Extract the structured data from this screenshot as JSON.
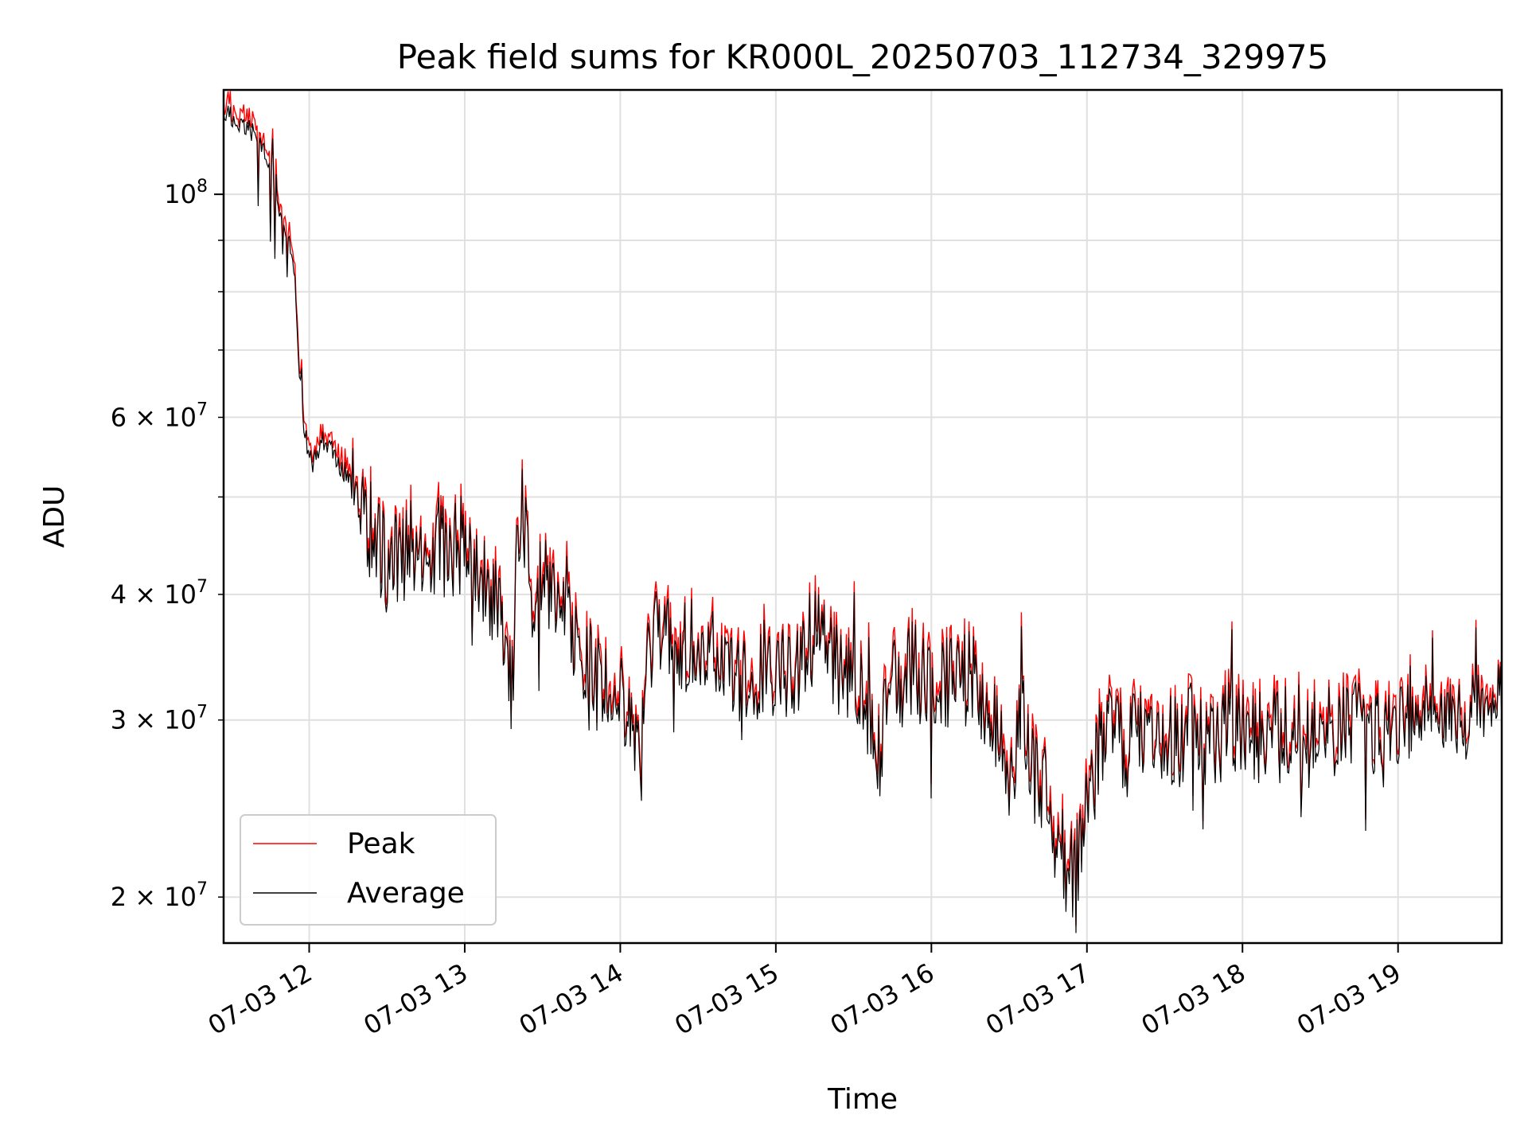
{
  "chart_data": {
    "type": "line",
    "title": "Peak field sums for KR000L_20250703_112734_329975",
    "xlabel": "Time",
    "ylabel": "ADU",
    "yscale": "log",
    "ylim": [
      18000000,
      127000000
    ],
    "xlim": [
      "2025-07-03 11:27",
      "2025-07-03 19:40"
    ],
    "grid": true,
    "legend_position": "lower-left",
    "x_ticks": [
      {
        "label": "07-03 12",
        "time": "2025-07-03 12:00"
      },
      {
        "label": "07-03 13",
        "time": "2025-07-03 13:00"
      },
      {
        "label": "07-03 14",
        "time": "2025-07-03 14:00"
      },
      {
        "label": "07-03 15",
        "time": "2025-07-03 15:00"
      },
      {
        "label": "07-03 16",
        "time": "2025-07-03 16:00"
      },
      {
        "label": "07-03 17",
        "time": "2025-07-03 17:00"
      },
      {
        "label": "07-03 18",
        "time": "2025-07-03 18:00"
      },
      {
        "label": "07-03 19",
        "time": "2025-07-03 19:00"
      }
    ],
    "y_ticks_major": [
      {
        "base": "10",
        "exp": "8",
        "value": 100000000
      }
    ],
    "y_ticks_minor": [
      {
        "mant": "2",
        "exp": "7",
        "value": 20000000
      },
      {
        "mant": "3",
        "exp": "7",
        "value": 30000000
      },
      {
        "mant": "4",
        "exp": "7",
        "value": 40000000
      },
      {
        "mant": "6",
        "exp": "7",
        "value": 60000000
      }
    ],
    "y_ticks_unlabeled": [
      50000000,
      70000000,
      80000000,
      90000000
    ],
    "series": [
      {
        "name": "Peak",
        "color": "#ff0000",
        "points": [
          [
            "2025-07-03 11:27",
            122000000
          ],
          [
            "2025-07-03 11:32",
            118000000
          ],
          [
            "2025-07-03 11:37",
            116000000
          ],
          [
            "2025-07-03 11:42",
            113000000
          ],
          [
            "2025-07-03 11:47",
            103000000
          ],
          [
            "2025-07-03 11:50",
            92000000
          ],
          [
            "2025-07-03 11:54",
            86000000
          ],
          [
            "2025-07-03 11:57",
            62000000
          ],
          [
            "2025-07-03 12:00",
            54000000
          ],
          [
            "2025-07-03 12:05",
            57000000
          ],
          [
            "2025-07-03 12:10",
            55000000
          ],
          [
            "2025-07-03 12:15",
            52000000
          ],
          [
            "2025-07-03 12:20",
            48000000
          ],
          [
            "2025-07-03 12:25",
            46000000
          ],
          [
            "2025-07-03 12:30",
            43000000
          ],
          [
            "2025-07-03 12:35",
            44000000
          ],
          [
            "2025-07-03 12:40",
            43500000
          ],
          [
            "2025-07-03 12:45",
            44000000
          ],
          [
            "2025-07-03 12:50",
            45000000
          ],
          [
            "2025-07-03 12:55",
            44000000
          ],
          [
            "2025-07-03 13:00",
            45000000
          ],
          [
            "2025-07-03 13:05",
            41000000
          ],
          [
            "2025-07-03 13:10",
            40000000
          ],
          [
            "2025-07-03 13:15",
            38000000
          ],
          [
            "2025-07-03 13:18",
            31500000
          ],
          [
            "2025-07-03 13:20",
            42000000
          ],
          [
            "2025-07-03 13:22",
            51000000
          ],
          [
            "2025-07-03 13:25",
            40000000
          ],
          [
            "2025-07-03 13:30",
            41000000
          ],
          [
            "2025-07-03 13:35",
            39500000
          ],
          [
            "2025-07-03 13:40",
            39000000
          ],
          [
            "2025-07-03 13:45",
            34000000
          ],
          [
            "2025-07-03 13:50",
            33500000
          ],
          [
            "2025-07-03 13:55",
            33000000
          ],
          [
            "2025-07-03 14:00",
            32000000
          ],
          [
            "2025-07-03 14:05",
            30000000
          ],
          [
            "2025-07-03 14:08",
            27000000
          ],
          [
            "2025-07-03 14:10",
            36000000
          ],
          [
            "2025-07-03 14:15",
            36500000
          ],
          [
            "2025-07-03 14:20",
            37000000
          ],
          [
            "2025-07-03 14:25",
            35000000
          ],
          [
            "2025-07-03 14:30",
            36000000
          ],
          [
            "2025-07-03 14:35",
            35000000
          ],
          [
            "2025-07-03 14:40",
            34000000
          ],
          [
            "2025-07-03 14:45",
            33500000
          ],
          [
            "2025-07-03 14:50",
            32500000
          ],
          [
            "2025-07-03 14:55",
            34000000
          ],
          [
            "2025-07-03 15:00",
            33000000
          ],
          [
            "2025-07-03 15:05",
            33500000
          ],
          [
            "2025-07-03 15:10",
            34500000
          ],
          [
            "2025-07-03 15:15",
            36000000
          ],
          [
            "2025-07-03 15:20",
            35500000
          ],
          [
            "2025-07-03 15:25",
            33000000
          ],
          [
            "2025-07-03 15:30",
            34000000
          ],
          [
            "2025-07-03 15:35",
            31000000
          ],
          [
            "2025-07-03 15:40",
            28000000
          ],
          [
            "2025-07-03 15:45",
            33000000
          ],
          [
            "2025-07-03 15:50",
            33000000
          ],
          [
            "2025-07-03 15:55",
            34000000
          ],
          [
            "2025-07-03 16:00",
            33000000
          ],
          [
            "2025-07-03 16:05",
            32500000
          ],
          [
            "2025-07-03 16:10",
            34000000
          ],
          [
            "2025-07-03 16:15",
            33000000
          ],
          [
            "2025-07-03 16:20",
            31000000
          ],
          [
            "2025-07-03 16:25",
            29000000
          ],
          [
            "2025-07-03 16:30",
            27000000
          ],
          [
            "2025-07-03 16:35",
            30000000
          ],
          [
            "2025-07-03 16:40",
            26000000
          ],
          [
            "2025-07-03 16:45",
            24000000
          ],
          [
            "2025-07-03 16:50",
            22000000
          ],
          [
            "2025-07-03 16:55",
            21000000
          ],
          [
            "2025-07-03 17:00",
            24000000
          ],
          [
            "2025-07-03 17:05",
            28000000
          ],
          [
            "2025-07-03 17:10",
            30000000
          ],
          [
            "2025-07-03 17:15",
            28000000
          ],
          [
            "2025-07-03 17:20",
            29000000
          ],
          [
            "2025-07-03 17:25",
            30000000
          ],
          [
            "2025-07-03 17:30",
            29000000
          ],
          [
            "2025-07-03 17:35",
            28500000
          ],
          [
            "2025-07-03 17:40",
            30000000
          ],
          [
            "2025-07-03 17:45",
            29000000
          ],
          [
            "2025-07-03 17:50",
            28000000
          ],
          [
            "2025-07-03 17:55",
            29500000
          ],
          [
            "2025-07-03 18:00",
            30000000
          ],
          [
            "2025-07-03 18:05",
            29000000
          ],
          [
            "2025-07-03 18:10",
            28500000
          ],
          [
            "2025-07-03 18:15",
            29000000
          ],
          [
            "2025-07-03 18:20",
            30000000
          ],
          [
            "2025-07-03 18:25",
            28000000
          ],
          [
            "2025-07-03 18:30",
            29000000
          ],
          [
            "2025-07-03 18:35",
            28500000
          ],
          [
            "2025-07-03 18:40",
            29000000
          ],
          [
            "2025-07-03 18:45",
            30000000
          ],
          [
            "2025-07-03 18:50",
            29000000
          ],
          [
            "2025-07-03 18:55",
            28000000
          ],
          [
            "2025-07-03 19:00",
            29500000
          ],
          [
            "2025-07-03 19:05",
            31000000
          ],
          [
            "2025-07-03 19:08",
            30000000
          ],
          [
            "2025-07-03 19:12",
            31500000
          ],
          [
            "2025-07-03 19:15",
            29500000
          ],
          [
            "2025-07-03 19:20",
            30500000
          ],
          [
            "2025-07-03 19:25",
            28000000
          ],
          [
            "2025-07-03 19:30",
            31500000
          ],
          [
            "2025-07-03 19:35",
            30000000
          ],
          [
            "2025-07-03 19:40",
            32000000
          ]
        ]
      },
      {
        "name": "Average",
        "color": "#000000",
        "points": []
      }
    ]
  }
}
